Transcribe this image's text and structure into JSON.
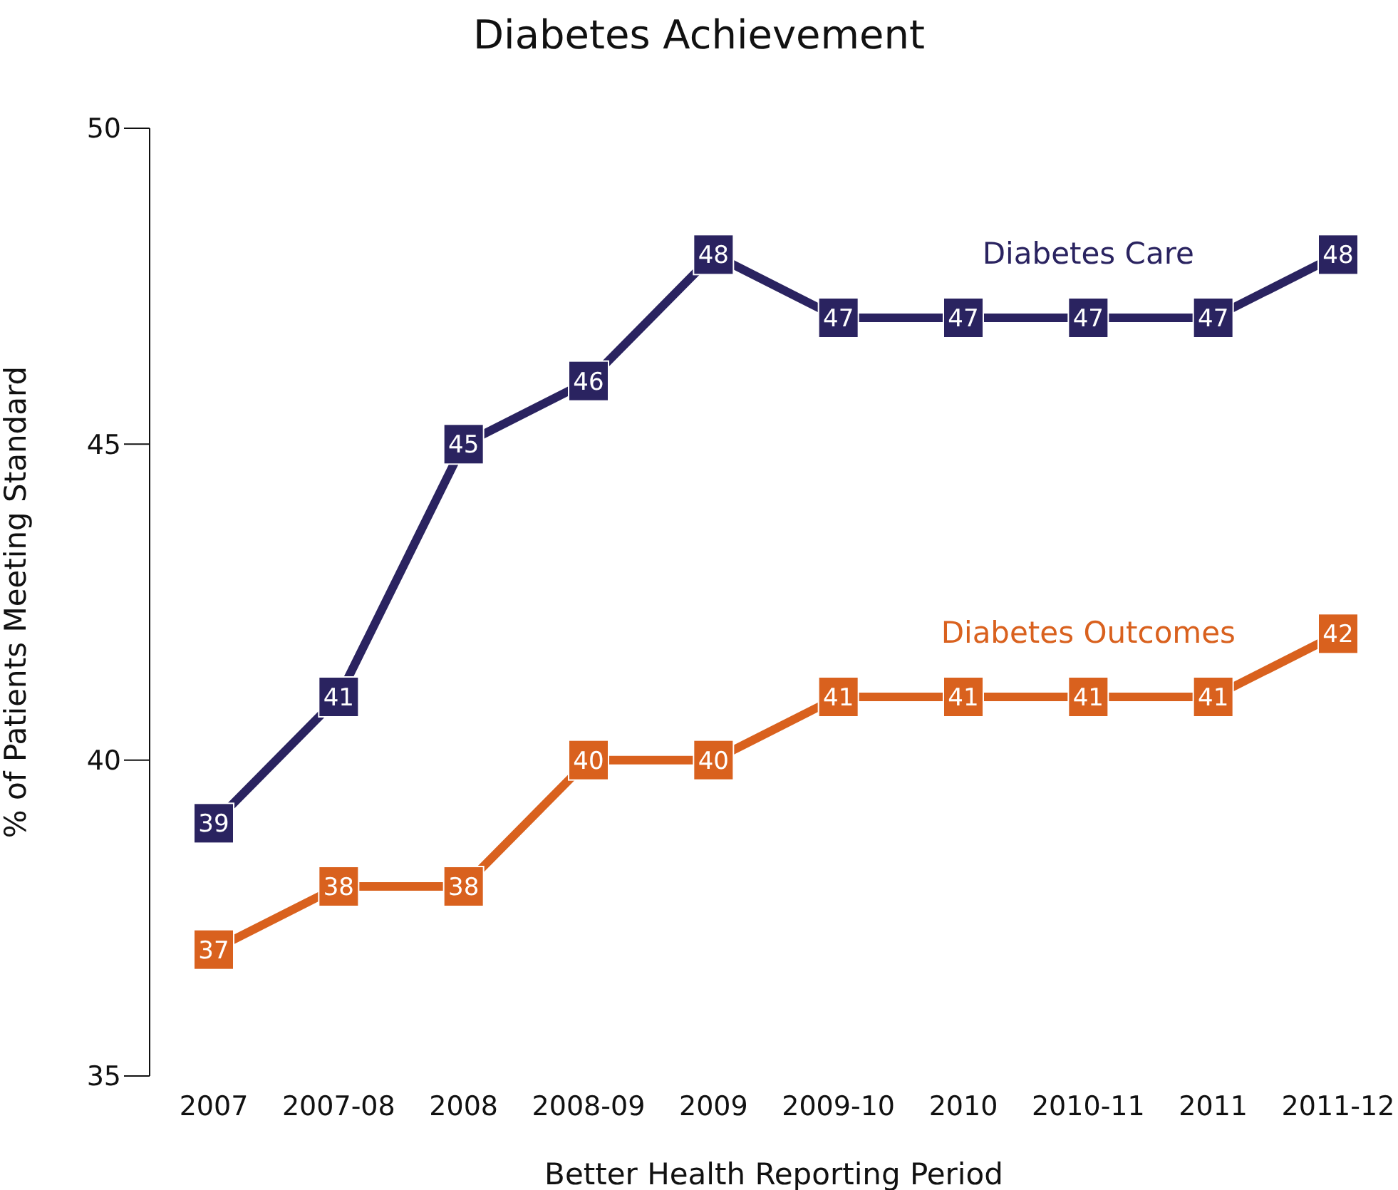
{
  "chart_data": {
    "type": "line",
    "title": "Diabetes Achievement",
    "xlabel": "Better Health Reporting Period",
    "ylabel": "% of Patients Meeting Standard",
    "categories": [
      "2007",
      "2007-08",
      "2008",
      "2008-09",
      "2009",
      "2009-10",
      "2010",
      "2010-11",
      "2011",
      "2011-12"
    ],
    "series": [
      {
        "name": "Diabetes Care",
        "color": "#2a2360",
        "values": [
          39,
          41,
          45,
          46,
          48,
          47,
          47,
          47,
          47,
          48
        ]
      },
      {
        "name": "Diabetes Outcomes",
        "color": "#d9611e",
        "values": [
          37,
          38,
          38,
          40,
          40,
          41,
          41,
          41,
          41,
          42
        ]
      }
    ],
    "ylim": [
      35,
      50
    ],
    "yticks": [
      35,
      40,
      45,
      50
    ],
    "grid": false,
    "legend": false,
    "marker": "square",
    "line_style": "solid",
    "data_labels": true
  }
}
